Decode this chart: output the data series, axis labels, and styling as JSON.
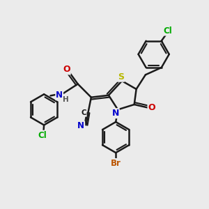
{
  "bg_color": "#ebebeb",
  "bond_color": "#1a1a1a",
  "bond_width": 1.8,
  "atoms": {
    "S": {
      "color": "#b8b800"
    },
    "N": {
      "color": "#0000cc"
    },
    "O": {
      "color": "#cc0000"
    },
    "Cl": {
      "color": "#00aa00"
    },
    "Br": {
      "color": "#bb5500"
    },
    "C": {
      "color": "#1a1a1a"
    },
    "H": {
      "color": "#555555"
    }
  },
  "figsize": [
    3.0,
    3.0
  ],
  "dpi": 100
}
